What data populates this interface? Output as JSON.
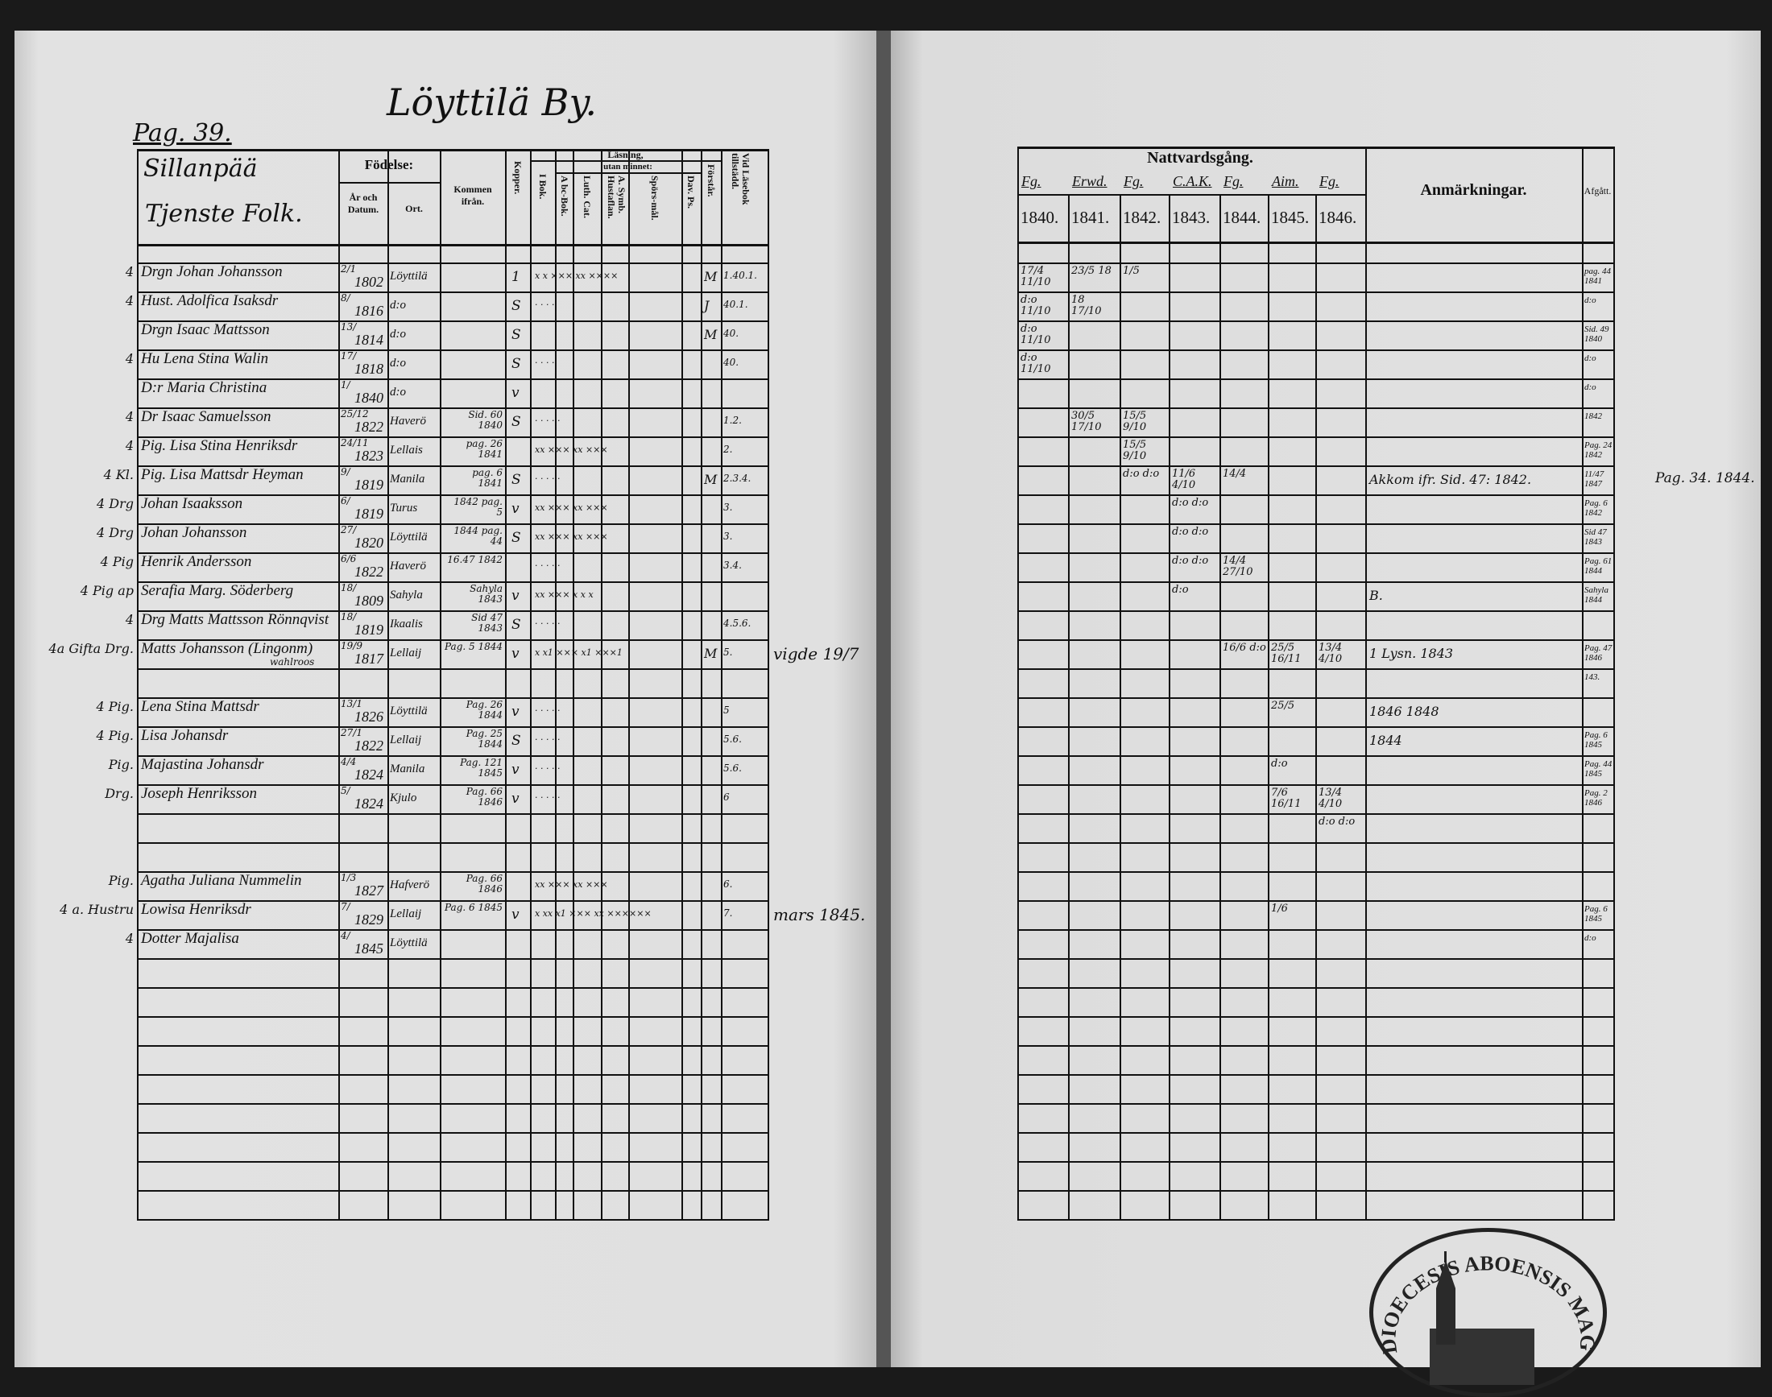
{
  "left_page": {
    "village_title": "Löyttilä By.",
    "page_ref": "Pag. 39.",
    "section_title_line1": "Sillanpää",
    "section_title_line2": "Tjenste Folk.",
    "headers": {
      "fodelse": "Födelse:",
      "ar_och_datum": "År och Datum.",
      "ort": "Ort.",
      "kommen_ifran": "Kommen ifrån.",
      "kopper": "Kopper.",
      "lasning": "Läsning,",
      "utan_minnet": "utan minnet:",
      "i_bok": "I Bok.",
      "abc_bok": "A bc-Bok.",
      "luth_cat": "Luth. Cat.",
      "a_symb": "A. Symb. Hustaflan.",
      "sporsmal": "Spörs-mål.",
      "dar_ps": "Dav. Ps.",
      "forstar": "Förstår.",
      "vid_lasebok": "Vid Läsebok tillstädd."
    },
    "rows": [
      {
        "margin": "4",
        "name": "Drgn Johan Johansson",
        "day": "2/1",
        "year": "1802",
        "place": "Löyttilä",
        "from": "",
        "kopper": "1",
        "reading": "x  x  ×××  xx  ××××",
        "forstar": "M",
        "vid": "1.40.1."
      },
      {
        "margin": "4",
        "name": "Hust. Adolfica Isaksdr",
        "day": "8/",
        "year": "1816",
        "place": "d:o",
        "from": "",
        "kopper": "S",
        "reading": "· · · ·",
        "forstar": "J",
        "vid": "40.1."
      },
      {
        "margin": "",
        "name": "Drgn Isaac Mattsson",
        "day": "13/",
        "year": "1814",
        "place": "d:o",
        "from": "",
        "kopper": "S",
        "reading": "",
        "forstar": "M",
        "vid": "40."
      },
      {
        "margin": "4",
        "name": "Hu Lena Stina Walin",
        "day": "17/",
        "year": "1818",
        "place": "d:o",
        "from": "",
        "kopper": "S",
        "reading": "· · · ·",
        "forstar": "",
        "vid": "40."
      },
      {
        "margin": "",
        "name": "D:r Maria Christina",
        "day": "1/",
        "year": "1840",
        "place": "d:o",
        "from": "",
        "kopper": "v",
        "reading": "",
        "forstar": "",
        "vid": ""
      },
      {
        "margin": "4",
        "name": "Dr Isaac Samuelsson",
        "day": "25/12",
        "year": "1822",
        "place": "Haverö",
        "from": "Sid. 60 1840",
        "kopper": "S",
        "reading": "· · · · ·",
        "forstar": "",
        "vid": "1.2."
      },
      {
        "margin": "4",
        "name": "Pig. Lisa Stina Henriksdr",
        "day": "24/11",
        "year": "1823",
        "place": "Lellais",
        "from": "pag. 26 1841",
        "kopper": "",
        "reading": "xx  ×××  xx  ×××",
        "forstar": "",
        "vid": "2."
      },
      {
        "margin": "4 Kl.",
        "name": "Pig. Lisa Mattsdr Heyman",
        "day": "9/",
        "year": "1819",
        "place": "Manila",
        "from": "pag. 6 1841",
        "kopper": "S",
        "reading": "· · · · ·",
        "forstar": "M",
        "vid": "2.3.4."
      },
      {
        "margin": "4 Drg",
        "name": "Johan Isaaksson",
        "day": "6/",
        "year": "1819",
        "place": "Turus",
        "from": "1842 pag. 5",
        "kopper": "v",
        "reading": "xx  ×××  xx  ×××",
        "forstar": "",
        "vid": "3."
      },
      {
        "margin": "4 Drg",
        "name": "Johan Johansson",
        "day": "27/",
        "year": "1820",
        "place": "Löyttilä",
        "from": "1844 pag. 44",
        "kopper": "S",
        "reading": "xx  ×××  xx  ×××",
        "forstar": "",
        "vid": "3."
      },
      {
        "margin": "4 Pig",
        "name": "Henrik Andersson",
        "day": "6/6",
        "year": "1822",
        "place": "Haverö",
        "from": "16.47 1842",
        "kopper": "",
        "reading": "· · · · ·",
        "forstar": "",
        "vid": "3.4."
      },
      {
        "margin": "4 Pig ap",
        "name": "Serafia Marg. Söderberg",
        "day": "18/",
        "year": "1809",
        "place": "Sahyla",
        "from": "Sahyla 1843",
        "kopper": "v",
        "reading": "xx  ×××  x x x",
        "forstar": "",
        "vid": ""
      },
      {
        "margin": "4",
        "name": "Drg Matts Mattsson Rönnqvist",
        "day": "18/",
        "year": "1819",
        "place": "Ikaalis",
        "from": "Sid 47 1843",
        "kopper": "S",
        "reading": "· · · · ·",
        "forstar": "",
        "vid": "4.5.6."
      },
      {
        "margin": "4a Gifta Drg.",
        "name": "Matts Johansson (Lingonm)",
        "name_note": "wahlroos",
        "day": "19/9",
        "year": "1817",
        "place": "Lellaij",
        "from": "Pag. 5 1844",
        "kopper": "v",
        "reading": "x  x1  ×××  x1  ×××1",
        "forstar": "M",
        "vid": "5."
      },
      {
        "margin": "",
        "name": "",
        "day": "",
        "year": "",
        "place": "",
        "from": "",
        "kopper": "",
        "reading": "",
        "forstar": "",
        "vid": ""
      },
      {
        "margin": "4 Pig.",
        "name": "Lena Stina Mattsdr",
        "day": "13/1",
        "year": "1826",
        "place": "Löyttilä",
        "from": "Pag. 26 1844",
        "kopper": "v",
        "reading": "· · · · ·",
        "forstar": "",
        "vid": "5"
      },
      {
        "margin": "4 Pig.",
        "name": "Lisa Johansdr",
        "day": "27/1",
        "year": "1822",
        "place": "Lellaij",
        "from": "Pag. 25 1844",
        "kopper": "S",
        "reading": "· · · · ·",
        "forstar": "",
        "vid": "5.6."
      },
      {
        "margin": "Pig.",
        "name": "Majastina Johansdr",
        "day": "4/4",
        "year": "1824",
        "place": "Manila",
        "from": "Pag. 121 1845",
        "kopper": "v",
        "reading": "· · · · ·",
        "forstar": "",
        "vid": "5.6."
      },
      {
        "margin": "Drg.",
        "name": "Joseph Henriksson",
        "day": "5/",
        "year": "1824",
        "place": "Kjulo",
        "from": "Pag. 66 1846",
        "kopper": "v",
        "reading": "· · · · ·",
        "forstar": "",
        "vid": "6"
      },
      {
        "margin": "",
        "name": "",
        "day": "",
        "year": "",
        "place": "",
        "from": "",
        "kopper": "",
        "reading": "",
        "forstar": "",
        "vid": ""
      },
      {
        "margin": "",
        "name": "",
        "day": "",
        "year": "",
        "place": "",
        "from": "",
        "kopper": "",
        "reading": "",
        "forstar": "",
        "vid": ""
      },
      {
        "margin": "Pig.",
        "name": "Agatha Juliana Nummelin",
        "day": "1/3",
        "year": "1827",
        "place": "Hafverö",
        "from": "Pag. 66 1846",
        "kopper": "",
        "reading": "xx  ×××  xx  ×××",
        "forstar": "",
        "vid": "6."
      },
      {
        "margin": "4 a. Hustru",
        "name": "Lowisa Henriksdr",
        "day": "7/",
        "year": "1829",
        "place": "Lellaij",
        "from": "Pag. 6 1845",
        "kopper": "v",
        "reading": "x  xx  x1  ×××  xx  ××××××",
        "forstar": "",
        "vid": "7."
      },
      {
        "margin": "4",
        "name": "Dotter Majalisa",
        "day": "4/",
        "year": "1845",
        "place": "Löyttilä",
        "from": "",
        "kopper": "",
        "reading": "",
        "forstar": "",
        "vid": ""
      }
    ],
    "gutter_notes": [
      {
        "row": 13,
        "text": "vigde 19/7"
      },
      {
        "row": 22,
        "text": "mars 1845."
      }
    ]
  },
  "right_page": {
    "headers": {
      "nattvardsgang": "Nattvardsgång.",
      "anmarkningar": "Anmärkningar.",
      "afgatt": "Afgått."
    },
    "years": [
      "1840.",
      "1841.",
      "1842.",
      "1843.",
      "1844.",
      "1845.",
      "1846."
    ],
    "year_hand_notes": [
      "Fg.",
      "Erwd.",
      "Fg.",
      "C.A.K.",
      "Fg.",
      "Aim.",
      "Fg."
    ],
    "rows": [
      {
        "c": [
          "17/4 11/10",
          "23/5 18",
          "1/5",
          "",
          "",
          "",
          ""
        ],
        "anm": "",
        "afg": "pag. 44 1841"
      },
      {
        "c": [
          "d:o 11/10",
          "18 17/10",
          "",
          "",
          "",
          "",
          ""
        ],
        "anm": "",
        "afg": "d:o"
      },
      {
        "c": [
          "d:o 11/10",
          "",
          "",
          "",
          "",
          "",
          ""
        ],
        "anm": "",
        "afg": "Sid. 49 1840"
      },
      {
        "c": [
          "d:o 11/10",
          "",
          "",
          "",
          "",
          "",
          ""
        ],
        "anm": "",
        "afg": "d:o"
      },
      {
        "c": [
          "",
          "",
          "",
          "",
          "",
          "",
          ""
        ],
        "anm": "",
        "afg": "d:o"
      },
      {
        "c": [
          "",
          "30/5 17/10",
          "15/5 9/10",
          "",
          "",
          "",
          ""
        ],
        "anm": "",
        "afg": "1842"
      },
      {
        "c": [
          "",
          "",
          "15/5 9/10",
          "",
          "",
          "",
          ""
        ],
        "anm": "",
        "afg": "Pag. 24 1842"
      },
      {
        "c": [
          "",
          "",
          "d:o d:o",
          "11/6 4/10",
          "14/4",
          "",
          ""
        ],
        "anm": "Akkom ifr. Sid. 47: 1842.",
        "afg": "11/47 1847"
      },
      {
        "c": [
          "",
          "",
          "",
          "d:o d:o",
          "",
          "",
          ""
        ],
        "anm": "",
        "afg": "Pag. 6 1842"
      },
      {
        "c": [
          "",
          "",
          "",
          "d:o d:o",
          "",
          "",
          ""
        ],
        "anm": "",
        "afg": "Sid 47 1843"
      },
      {
        "c": [
          "",
          "",
          "",
          "d:o d:o",
          "14/4 27/10",
          "",
          ""
        ],
        "anm": "",
        "afg": "Pag. 61 1844"
      },
      {
        "c": [
          "",
          "",
          "",
          "d:o",
          "",
          "",
          ""
        ],
        "anm": "B.",
        "afg": "Sahyla 1844"
      },
      {
        "c": [
          "",
          "",
          "",
          "",
          "",
          "",
          ""
        ],
        "anm": "",
        "afg": ""
      },
      {
        "c": [
          "",
          "",
          "",
          "",
          "16/6 d:o",
          "25/5 16/11",
          "13/4 4/10"
        ],
        "anm": "1 Lysn. 1843",
        "afg": "Pag. 47 1846"
      },
      {
        "c": [
          "",
          "",
          "",
          "",
          "",
          "",
          ""
        ],
        "anm": "",
        "afg": "143."
      },
      {
        "c": [
          "",
          "",
          "",
          "",
          "",
          "25/5",
          ""
        ],
        "anm": "1846 1848",
        "afg": ""
      },
      {
        "c": [
          "",
          "",
          "",
          "",
          "",
          "",
          ""
        ],
        "anm": "1844",
        "afg": "Pag. 6 1845"
      },
      {
        "c": [
          "",
          "",
          "",
          "",
          "",
          "d:o",
          ""
        ],
        "anm": "",
        "afg": "Pag. 44 1845"
      },
      {
        "c": [
          "",
          "",
          "",
          "",
          "",
          "7/6 16/11",
          "13/4 4/10"
        ],
        "anm": "",
        "afg": "Pag. 2 1846"
      },
      {
        "c": [
          "",
          "",
          "",
          "",
          "",
          "",
          "d:o d:o"
        ],
        "anm": "",
        "afg": ""
      },
      {
        "c": [
          "",
          "",
          "",
          "",
          "",
          "",
          ""
        ],
        "anm": "",
        "afg": ""
      },
      {
        "c": [
          "",
          "",
          "",
          "",
          "",
          "",
          ""
        ],
        "anm": "",
        "afg": ""
      },
      {
        "c": [
          "",
          "",
          "",
          "",
          "",
          "1/6",
          ""
        ],
        "anm": "",
        "afg": "Pag. 6 1845"
      },
      {
        "c": [
          "",
          "",
          "",
          "",
          "",
          "",
          ""
        ],
        "anm": "",
        "afg": "d:o"
      }
    ],
    "margin_notes": [
      {
        "row": 8,
        "text": "Pag. 34. 1844."
      }
    ],
    "stamp_text": "DIOECESIS ABOENSIS MAGNI FINL"
  }
}
